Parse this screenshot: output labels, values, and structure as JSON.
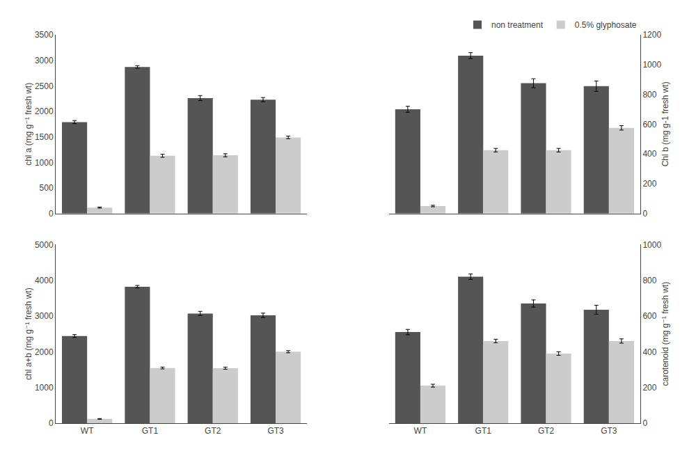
{
  "chart_data": [
    {
      "type": "bar",
      "categories": [
        "WT",
        "GT1",
        "GT2",
        "GT3"
      ],
      "series": [
        {
          "name": "non treatment",
          "color": "#555555",
          "values": [
            1790,
            2870,
            2260,
            2230
          ],
          "errors": [
            30,
            25,
            50,
            40
          ]
        },
        {
          "name": "0.5% glyphosate",
          "color": "#cccccc",
          "values": [
            115,
            1130,
            1140,
            1490
          ],
          "errors": [
            10,
            30,
            30,
            25
          ]
        }
      ],
      "ylabel": "chl a (mg g⁻¹ fresh wt)",
      "ylim": [
        0,
        3500
      ],
      "yticks": [
        0,
        500,
        1000,
        1500,
        2000,
        2500,
        3000,
        3500
      ],
      "grid": false,
      "tick_labels": "y"
    },
    {
      "type": "bar",
      "categories": [
        "WT",
        "GT1",
        "GT2",
        "GT3"
      ],
      "series": [
        {
          "name": "non treatment",
          "color": "#555555",
          "values": [
            700,
            1060,
            875,
            855
          ],
          "errors": [
            20,
            20,
            30,
            35
          ]
        },
        {
          "name": "0.5% glyphosate",
          "color": "#cccccc",
          "values": [
            50,
            425,
            425,
            575
          ],
          "errors": [
            5,
            12,
            12,
            15
          ]
        }
      ],
      "ylabel": "Chl b (mg g-1 fresh wt)",
      "ylim": [
        0,
        1200
      ],
      "yticks": [
        0,
        200,
        400,
        600,
        800,
        1000,
        1200
      ],
      "grid": false,
      "tick_labels": "y",
      "legend": "upper right"
    },
    {
      "type": "bar",
      "categories": [
        "WT",
        "GT1",
        "GT2",
        "GT3"
      ],
      "series": [
        {
          "name": "non treatment",
          "color": "#555555",
          "values": [
            2440,
            3820,
            3070,
            3020
          ],
          "errors": [
            40,
            35,
            60,
            60
          ]
        },
        {
          "name": "0.5% glyphosate",
          "color": "#cccccc",
          "values": [
            120,
            1545,
            1540,
            2000
          ],
          "errors": [
            10,
            25,
            30,
            30
          ]
        }
      ],
      "ylabel": "chl a+b (mg g⁻¹ fresh wt)",
      "ylim": [
        0,
        5000
      ],
      "yticks": [
        0,
        1000,
        2000,
        3000,
        4000,
        5000
      ],
      "grid": false
    },
    {
      "type": "bar",
      "categories": [
        "WT",
        "GT1",
        "GT2",
        "GT3"
      ],
      "series": [
        {
          "name": "non treatment",
          "color": "#555555",
          "values": [
            510,
            820,
            670,
            635
          ],
          "errors": [
            15,
            15,
            20,
            25
          ]
        },
        {
          "name": "0.5% glyphosate",
          "color": "#cccccc",
          "values": [
            210,
            460,
            390,
            460
          ],
          "errors": [
            8,
            10,
            10,
            12
          ]
        }
      ],
      "ylabel": "carotenoid (mg g⁻¹ fresh wt)",
      "ylim": [
        0,
        1000
      ],
      "yticks": [
        0,
        200,
        400,
        600,
        800,
        1000
      ],
      "grid": false
    }
  ]
}
